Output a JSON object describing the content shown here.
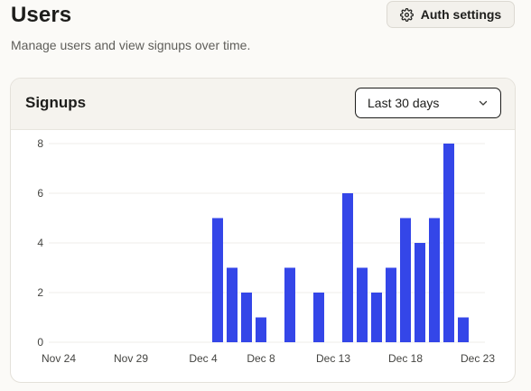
{
  "header": {
    "title": "Users",
    "subtitle": "Manage users and view signups over time.",
    "auth_settings_label": "Auth settings",
    "auth_settings_icon": "gear-icon"
  },
  "signups_card": {
    "title": "Signups",
    "range_select": {
      "value": "Last 30 days",
      "icon": "chevron-down-icon"
    }
  },
  "colors": {
    "bar": "#3446e8",
    "grid": "#efede8"
  },
  "chart_data": {
    "type": "bar",
    "x": [
      "Nov 24",
      "Nov 25",
      "Nov 26",
      "Nov 27",
      "Nov 28",
      "Nov 29",
      "Nov 30",
      "Dec 1",
      "Dec 2",
      "Dec 3",
      "Dec 4",
      "Dec 5",
      "Dec 6",
      "Dec 7",
      "Dec 8",
      "Dec 9",
      "Dec 10",
      "Dec 11",
      "Dec 12",
      "Dec 13",
      "Dec 14",
      "Dec 15",
      "Dec 16",
      "Dec 17",
      "Dec 18",
      "Dec 19",
      "Dec 20",
      "Dec 21",
      "Dec 22",
      "Dec 23"
    ],
    "values": [
      0,
      0,
      0,
      0,
      0,
      0,
      0,
      0,
      0,
      0,
      0,
      5,
      3,
      2,
      1,
      0,
      3,
      0,
      2,
      0,
      6,
      3,
      2,
      3,
      5,
      4,
      5,
      8,
      1,
      0
    ],
    "x_tick_labels": [
      "Nov 24",
      "Nov 29",
      "Dec 4",
      "Dec 8",
      "Dec 13",
      "Dec 18",
      "Dec 23"
    ],
    "y_ticks": [
      0,
      2,
      4,
      6,
      8
    ],
    "ylim": [
      0,
      8
    ],
    "grid": "horizontal",
    "legend": "none"
  }
}
